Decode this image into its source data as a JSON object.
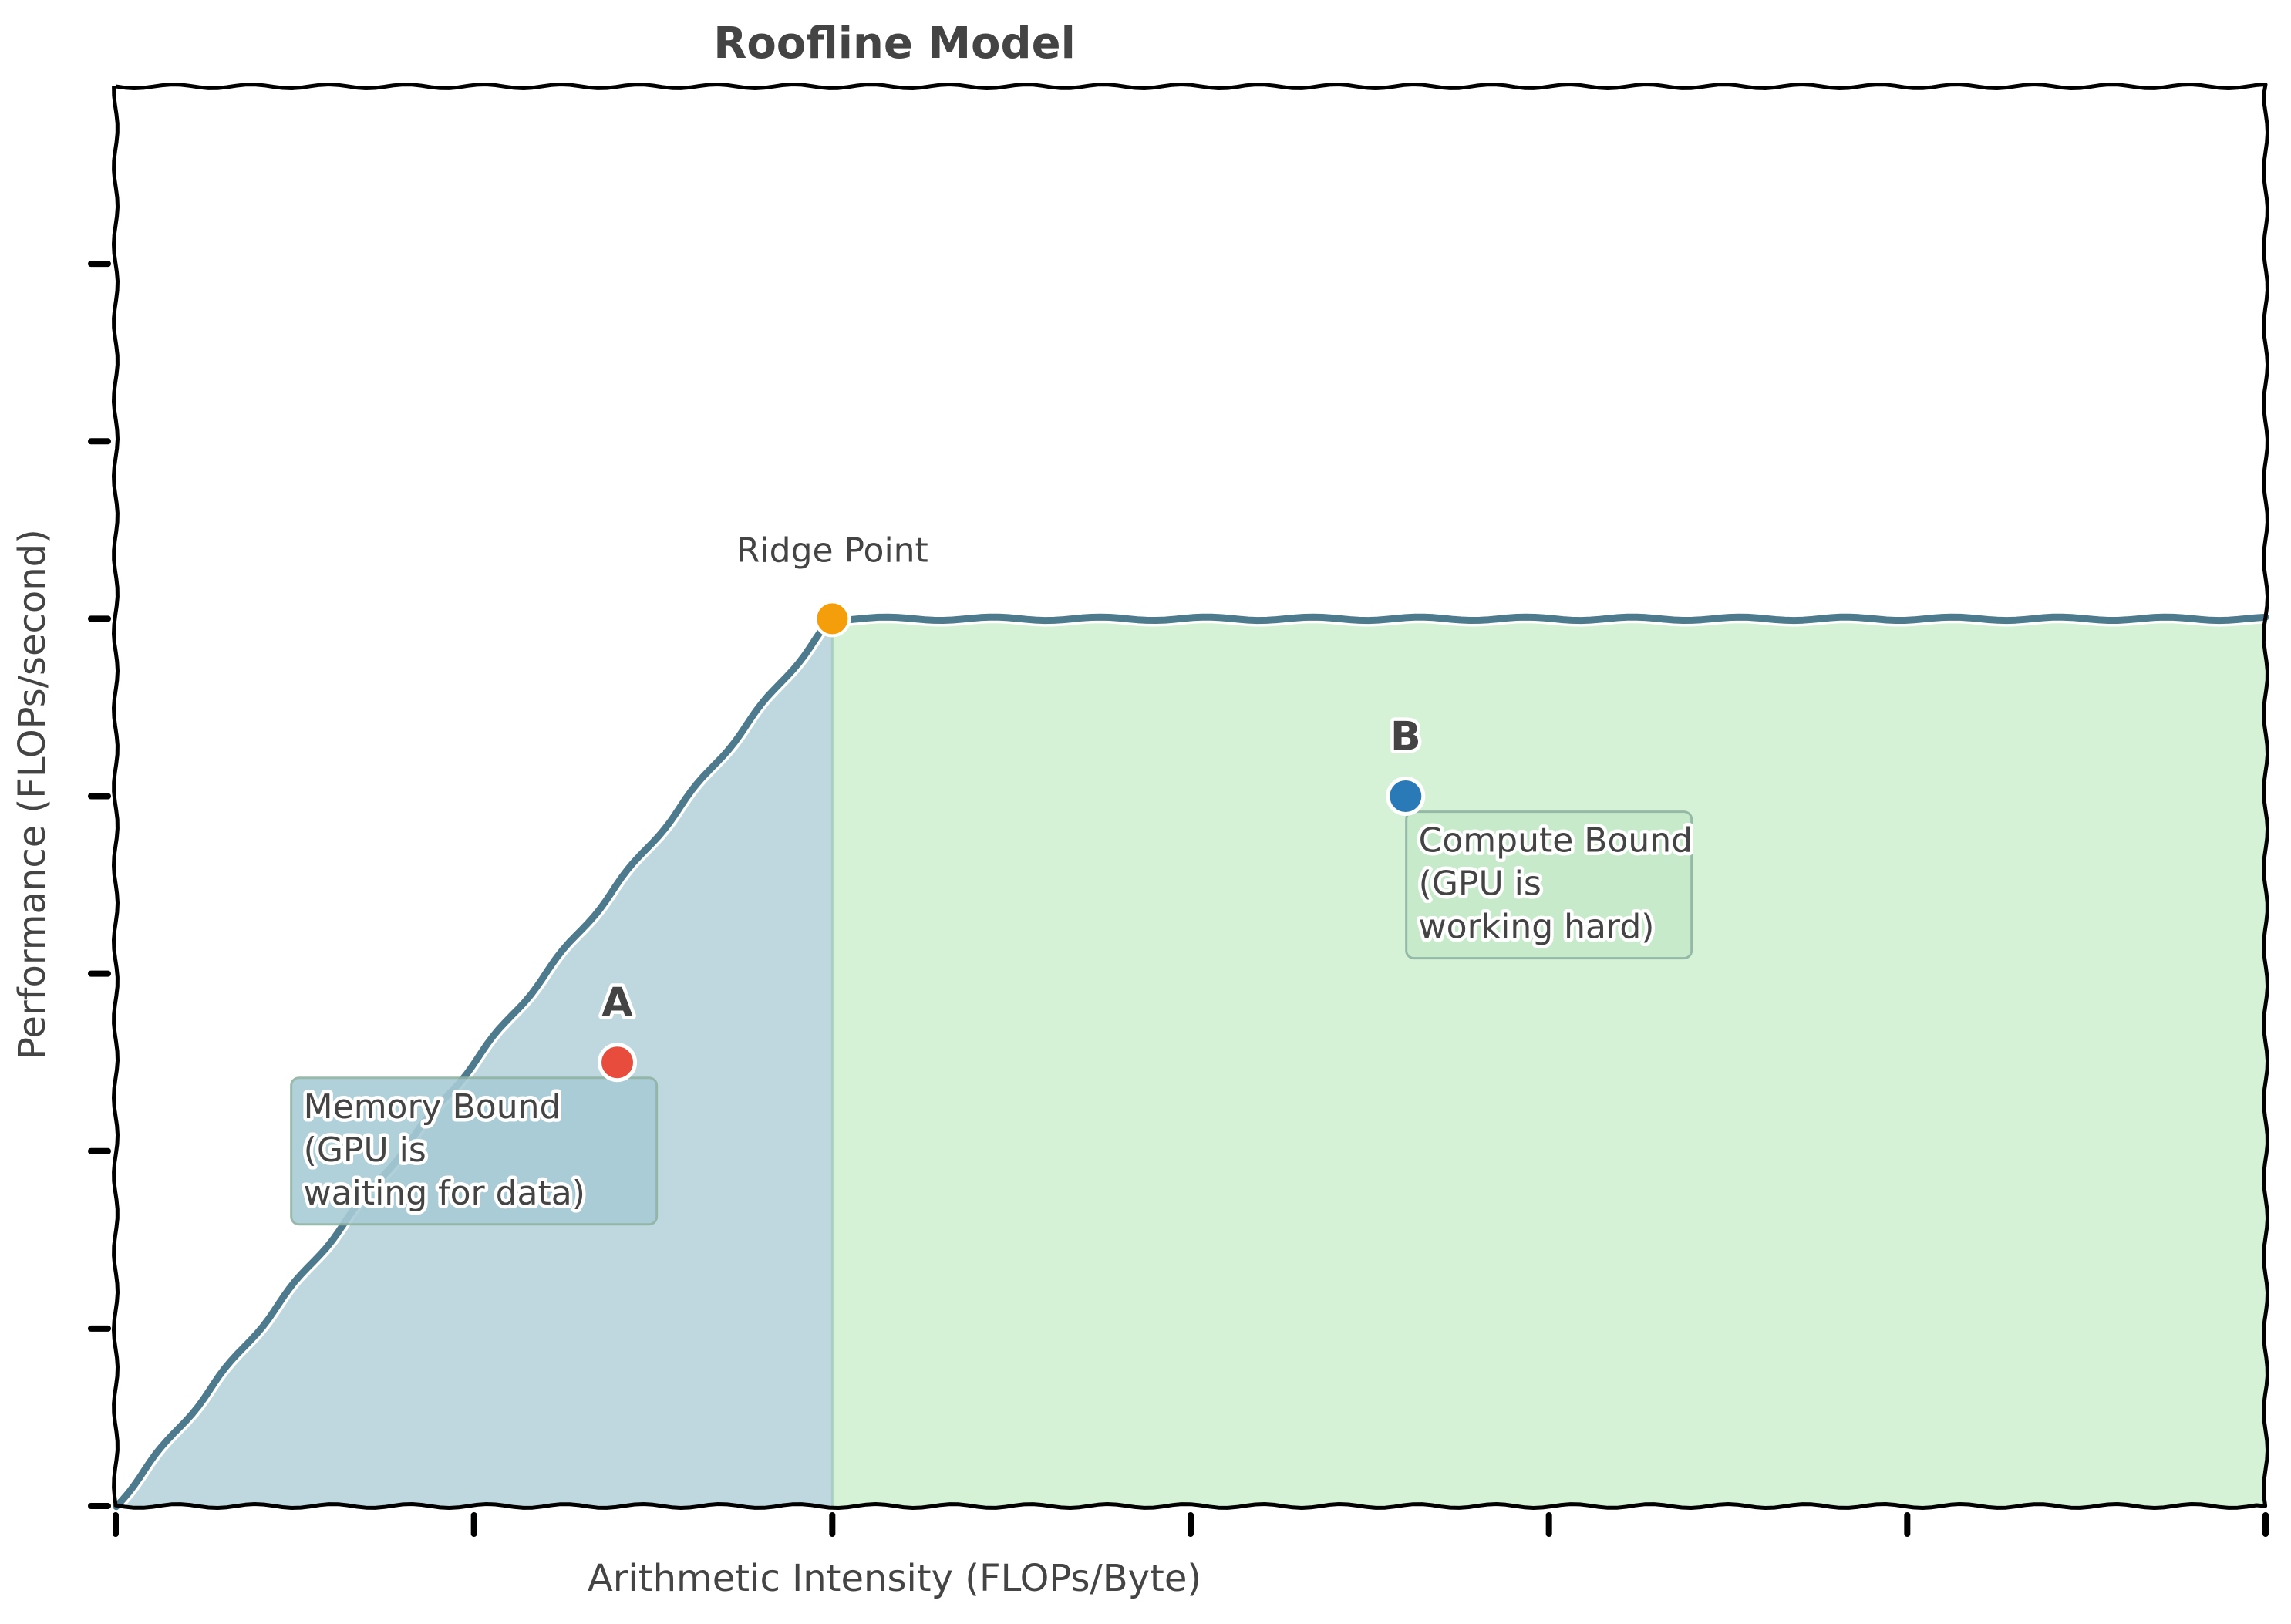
{
  "chart_data": {
    "type": "area",
    "title": "Roofline Model",
    "xlabel": "Arithmetic Intensity (FLOPs/Byte)",
    "ylabel": "Performance (FLOPs/second)",
    "xlim": [
      0,
      12
    ],
    "ylim": [
      0,
      16
    ],
    "x_ticks": [
      0,
      2,
      4,
      6,
      8,
      10,
      12
    ],
    "y_ticks": [
      0,
      2,
      4,
      6,
      8,
      10,
      12,
      14
    ],
    "tick_labels_shown": false,
    "grid": false,
    "roofline": {
      "x": [
        0,
        4,
        12
      ],
      "y": [
        0,
        10,
        10
      ],
      "color": "#4e7a8e"
    },
    "ridge_point": {
      "x": 4,
      "y": 10,
      "label": "Ridge Point",
      "color": "#f59e0b"
    },
    "regions": [
      {
        "label": "Memory Bound\n(GPU is\nwaiting for data)",
        "x_range": [
          0,
          4
        ],
        "color": "#bfd8e0",
        "text_x": 2.0,
        "text_y": 4.0
      },
      {
        "label": "Compute Bound\n(GPU is\nworking hard)",
        "x_range": [
          4,
          12
        ],
        "color": "#d5f1d6",
        "text_x": 8.0,
        "text_y": 7.0
      }
    ],
    "points": [
      {
        "name": "A",
        "x": 2.8,
        "y": 5.0,
        "color": "#e74c3c"
      },
      {
        "name": "B",
        "x": 7.2,
        "y": 8.0,
        "color": "#2a7ab8"
      }
    ]
  }
}
